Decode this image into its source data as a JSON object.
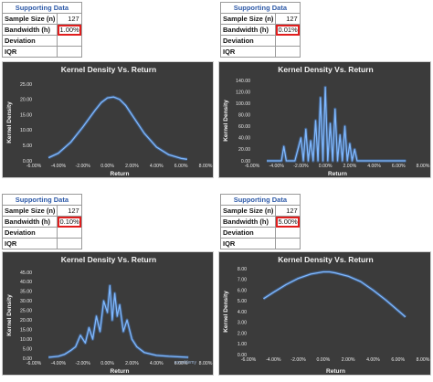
{
  "panels": [
    {
      "table": {
        "header": "Supporting Data",
        "rows": [
          {
            "label": "Sample Size (n)",
            "value": "127"
          },
          {
            "label": "Bandwidth (h)",
            "value": "1.00%"
          },
          {
            "label": "Deviation",
            "value": ""
          },
          {
            "label": "IQR",
            "value": ""
          }
        ]
      }
    },
    {
      "table": {
        "header": "Supporting Data",
        "rows": [
          {
            "label": "Sample Size (n)",
            "value": "127"
          },
          {
            "label": "Bandwidth (h)",
            "value": "0.01%"
          },
          {
            "label": "Deviation",
            "value": ""
          },
          {
            "label": "IQR",
            "value": ""
          }
        ]
      }
    },
    {
      "table": {
        "header": "Supporting Data",
        "rows": [
          {
            "label": "Sample Size (n)",
            "value": "127"
          },
          {
            "label": "Bandwidth (h)",
            "value": "0.10%"
          },
          {
            "label": "Deviation",
            "value": ""
          },
          {
            "label": "IQR",
            "value": ""
          }
        ]
      }
    },
    {
      "table": {
        "header": "Supporting Data",
        "rows": [
          {
            "label": "Sample Size (n)",
            "value": "127"
          },
          {
            "label": "Bandwidth (h)",
            "value": "5.00%"
          },
          {
            "label": "Deviation",
            "value": ""
          },
          {
            "label": "IQR",
            "value": ""
          }
        ]
      }
    }
  ],
  "watermark": "exceldemy",
  "colors": {
    "line": "#4f9bff",
    "chart_bg": "#3b3b3b",
    "highlight": "#e01e1e",
    "header_text": "#2e5aa8"
  },
  "chart_data": [
    {
      "type": "line",
      "title": "Kernel Density Vs. Return",
      "xlabel": "Return",
      "ylabel": "Kernel Density",
      "xlim": [
        -6,
        8
      ],
      "ylim": [
        0,
        25
      ],
      "x_ticks": [
        "-6.00%",
        "-4.00%",
        "-2.00%",
        "0.00%",
        "2.00%",
        "4.00%",
        "6.00%",
        "8.00%"
      ],
      "y_ticks": [
        "0.00",
        "5.00",
        "10.00",
        "15.00",
        "20.00",
        "25.00"
      ],
      "x": [
        -4.8,
        -4,
        -3,
        -2,
        -1,
        -0.5,
        0,
        0.5,
        1,
        1.5,
        2,
        3,
        4,
        5,
        6,
        6.5
      ],
      "y": [
        1.0,
        2.5,
        6.0,
        11.0,
        16.5,
        19.0,
        20.5,
        20.8,
        20.0,
        18.0,
        15.0,
        9.0,
        4.5,
        2.0,
        0.8,
        0.5
      ]
    },
    {
      "type": "line",
      "title": "Kernel Density Vs. Return",
      "xlabel": "Return",
      "ylabel": "Kernel Density",
      "xlim": [
        -6,
        8
      ],
      "ylim": [
        0,
        140
      ],
      "x_ticks": [
        "-6.00%",
        "-4.00%",
        "-2.00%",
        "0.00%",
        "2.00%",
        "4.00%",
        "6.00%",
        "8.00%"
      ],
      "y_ticks": [
        "0.00",
        "20.00",
        "40.00",
        "60.00",
        "80.00",
        "100.00",
        "120.00",
        "140.00"
      ],
      "x": [
        -4.8,
        -3.6,
        -3.4,
        -3.2,
        -3.0,
        -2.5,
        -2.0,
        -1.8,
        -1.6,
        -1.4,
        -1.2,
        -1.0,
        -0.8,
        -0.6,
        -0.4,
        -0.2,
        0.0,
        0.2,
        0.4,
        0.6,
        0.8,
        1.0,
        1.2,
        1.4,
        1.6,
        1.8,
        2.0,
        2.2,
        2.4,
        2.6,
        3.0,
        4.0,
        5.0,
        6.6
      ],
      "y": [
        0,
        0,
        25,
        0,
        0,
        0,
        40,
        0,
        55,
        0,
        35,
        0,
        70,
        0,
        110,
        0,
        128,
        0,
        65,
        0,
        90,
        0,
        45,
        0,
        60,
        0,
        30,
        0,
        20,
        0,
        0,
        0,
        0,
        0
      ]
    },
    {
      "type": "line",
      "title": "Kernel Density Vs. Return",
      "xlabel": "Return",
      "ylabel": "Kernel Density",
      "xlim": [
        -6,
        8
      ],
      "ylim": [
        0,
        45
      ],
      "x_ticks": [
        "-6.00%",
        "-4.00%",
        "-2.00%",
        "0.00%",
        "2.00%",
        "4.00%",
        "6.00%",
        "8.00%"
      ],
      "y_ticks": [
        "0.00",
        "5.00",
        "10.00",
        "15.00",
        "20.00",
        "25.00",
        "30.00",
        "35.00",
        "40.00",
        "45.00"
      ],
      "x": [
        -4.8,
        -4.0,
        -3.5,
        -3.0,
        -2.6,
        -2.2,
        -1.8,
        -1.5,
        -1.2,
        -0.9,
        -0.6,
        -0.3,
        0.0,
        0.2,
        0.4,
        0.6,
        0.8,
        1.0,
        1.3,
        1.6,
        2.0,
        2.4,
        3.0,
        4.0,
        5.0,
        6.6
      ],
      "y": [
        0.5,
        1.0,
        2.0,
        4.0,
        6.0,
        12.0,
        8.0,
        16.0,
        10.0,
        22.0,
        14.0,
        30.0,
        24.0,
        38.0,
        20.0,
        34.0,
        22.0,
        28.0,
        14.0,
        20.0,
        10.0,
        6.0,
        3.0,
        1.5,
        1.0,
        0.5
      ]
    },
    {
      "type": "line",
      "title": "Kernel Density Vs. Return",
      "xlabel": "Return",
      "ylabel": "Kernel Density",
      "xlim": [
        -6,
        8
      ],
      "ylim": [
        0,
        8
      ],
      "x_ticks": [
        "-6.00%",
        "-4.00%",
        "-2.00%",
        "0.00%",
        "2.00%",
        "4.00%",
        "6.00%",
        "8.00%"
      ],
      "y_ticks": [
        "0.00",
        "1.00",
        "2.00",
        "3.00",
        "4.00",
        "5.00",
        "6.00",
        "7.00",
        "8.00"
      ],
      "x": [
        -4.8,
        -4,
        -3,
        -2,
        -1,
        0,
        0.5,
        1,
        2,
        3,
        4,
        5,
        6,
        6.6
      ],
      "y": [
        5.2,
        5.8,
        6.5,
        7.1,
        7.5,
        7.7,
        7.7,
        7.6,
        7.3,
        6.8,
        6.0,
        5.1,
        4.1,
        3.5
      ]
    }
  ]
}
